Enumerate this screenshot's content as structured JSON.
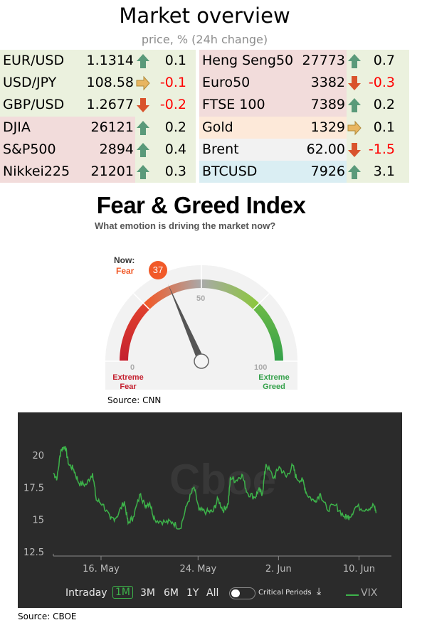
{
  "market": {
    "title": "Market overview",
    "subtitle": "price, % (24h change)",
    "left": [
      {
        "name": "EUR/USD",
        "price": "1.1314",
        "dir": "up",
        "change": "0.1",
        "bg": "#ebf1de"
      },
      {
        "name": "USD/JPY",
        "price": "108.58",
        "dir": "flat",
        "change": "-0.1",
        "bg": "#ebf1de"
      },
      {
        "name": "GBP/USD",
        "price": "1.2677",
        "dir": "down",
        "change": "-0.2",
        "bg": "#ebf1de"
      },
      {
        "name": "DJIA",
        "price": "26121",
        "dir": "up",
        "change": "0.2",
        "bg": "#f2dcdb"
      },
      {
        "name": "S&P500",
        "price": "2894",
        "dir": "up",
        "change": "0.4",
        "bg": "#f2dcdb"
      },
      {
        "name": "Nikkei225",
        "price": "21201",
        "dir": "up",
        "change": "0.3",
        "bg": "#f2dcdb"
      }
    ],
    "right": [
      {
        "name": "Heng Seng50",
        "price": "27773",
        "dir": "up",
        "change": "0.7",
        "bg": "#f2dcdb"
      },
      {
        "name": "Euro50",
        "price": "3382",
        "dir": "down",
        "change": "-0.3",
        "bg": "#f2dcdb"
      },
      {
        "name": "FTSE 100",
        "price": "7389",
        "dir": "up",
        "change": "0.2",
        "bg": "#f2dcdb"
      },
      {
        "name": "Gold",
        "price": "1329",
        "dir": "flat",
        "change": "0.1",
        "bg": "#fde9d9"
      },
      {
        "name": "Brent",
        "price": "62.00",
        "dir": "down",
        "change": "-1.5",
        "bg": "#f2f2f2"
      },
      {
        "name": "BTCUSD",
        "price": "7926",
        "dir": "up",
        "change": "3.1",
        "bg": "#daeef3"
      }
    ],
    "arrow_col_bg": "#ebf1de",
    "colors": {
      "up": "#5a9a7a",
      "down": "#d9532c",
      "flat": "#e8b560"
    }
  },
  "fear_greed": {
    "title": "Fear & Greed Index",
    "subtitle": "What emotion is driving the market now?",
    "now_label": "Now:",
    "now_state": "Fear",
    "value": 37,
    "value_text": "37",
    "tick_0": "0",
    "tick_50": "50",
    "tick_100": "100",
    "extreme_fear": [
      "Extreme",
      "Fear"
    ],
    "extreme_greed": [
      "Extreme",
      "Greed"
    ],
    "source": "Source: CNN"
  },
  "vix": {
    "watermark": "Cboe",
    "controls": {
      "intraday": "Intraday",
      "ranges": [
        "1M",
        "3M",
        "6M",
        "1Y",
        "All"
      ],
      "active": "1M",
      "toggle_label": "Critical Periods",
      "legend": "VIX"
    },
    "source": "Source: CBOE"
  },
  "chart_data": {
    "type": "line",
    "title": "",
    "xlabel": "",
    "ylabel": "",
    "ylim": [
      11.9,
      21.5
    ],
    "xlim": [
      0,
      100
    ],
    "yticks": [
      "12.5",
      "15",
      "17.5",
      "20"
    ],
    "ytick_values": [
      12.5,
      15,
      17.5,
      20
    ],
    "xticks": [
      "16. May",
      "24. May",
      "2. Jun",
      "10. Jun"
    ],
    "xtick_values": [
      14.1,
      42.8,
      66.6,
      90.4
    ],
    "series": [
      {
        "name": "VIX",
        "color": "#3db34a",
        "x": [
          0,
          1.1,
          2.2,
          3.5,
          4.5,
          6.0,
          7.6,
          9.7,
          11.6,
          12.7,
          14.6,
          16.9,
          18.7,
          21.0,
          22.1,
          23.6,
          25.8,
          27.0,
          28.5,
          30.0,
          33.0,
          35.2,
          37.5,
          39.7,
          41.6,
          43.1,
          45.3,
          47.2,
          48.7,
          50.2,
          51.7,
          52.4,
          53.9,
          55.8,
          57.3,
          59.6,
          60.7,
          61.8,
          62.9,
          65.2,
          66.8,
          68.9,
          70.8,
          71.9,
          73.8,
          74.9,
          77.2,
          79.0,
          80.9,
          83.5,
          86.1,
          87.6,
          89.5,
          92.5,
          94.8,
          95.5
        ],
        "y": [
          18.6,
          18.2,
          20.4,
          20.7,
          19.3,
          18.9,
          17.8,
          17.7,
          18.6,
          16.5,
          16.2,
          15.0,
          15.2,
          16.4,
          14.7,
          15.2,
          17.0,
          16.1,
          16.3,
          15.0,
          14.8,
          14.8,
          14.3,
          16.3,
          17.5,
          15.7,
          15.6,
          15.6,
          16.6,
          15.7,
          16.2,
          18.3,
          18.0,
          18.5,
          17.1,
          16.7,
          17.3,
          17.0,
          19.3,
          18.2,
          19.1,
          18.3,
          19.2,
          18.2,
          18.0,
          17.0,
          16.4,
          17.0,
          15.8,
          16.1,
          15.2,
          15.2,
          16.0,
          15.8,
          16.1,
          15.5
        ]
      }
    ]
  }
}
